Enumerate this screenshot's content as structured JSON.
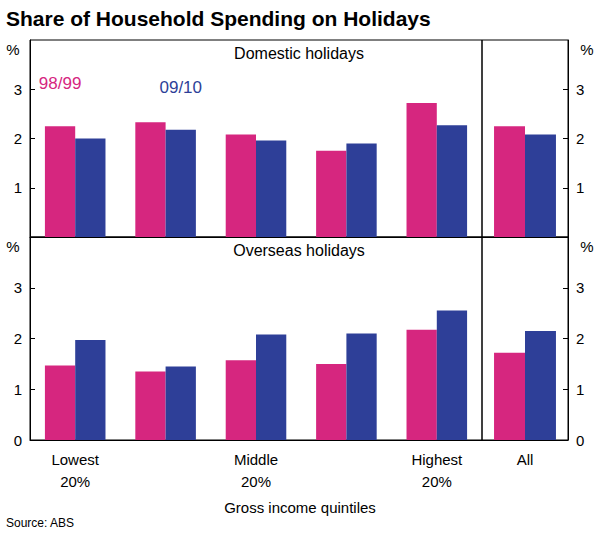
{
  "title": "Share of Household Spending on Holidays",
  "x_label": "Gross income quintiles",
  "source": "Source: ABS",
  "chart_data": [
    {
      "type": "bar",
      "title": "Domestic holidays",
      "y_label": "%",
      "categories": [
        "Lowest\n20%",
        null,
        "Middle\n20%",
        null,
        "Highest\n20%",
        "All"
      ],
      "series": [
        {
          "name": "98/99",
          "color": "#d6267f",
          "values": [
            2.25,
            2.33,
            2.08,
            1.75,
            2.72,
            2.25
          ]
        },
        {
          "name": "09/10",
          "color": "#2e3f98",
          "values": [
            2.0,
            2.18,
            1.96,
            1.9,
            2.27,
            2.08
          ]
        }
      ],
      "ylim": [
        0,
        4
      ],
      "yticks": [
        1,
        2,
        3
      ],
      "grid": false,
      "tick_labels": "y",
      "legend": "top left"
    },
    {
      "type": "bar",
      "title": "Overseas holidays",
      "y_label": "%",
      "categories": [
        "Lowest\n20%",
        null,
        "Middle\n20%",
        null,
        "Highest\n20%",
        "All"
      ],
      "series": [
        {
          "name": "98/99",
          "color": "#d6267f",
          "values": [
            1.47,
            1.35,
            1.57,
            1.5,
            2.17,
            1.72
          ]
        },
        {
          "name": "09/10",
          "color": "#2e3f98",
          "values": [
            1.97,
            1.45,
            2.08,
            2.1,
            2.55,
            2.15
          ]
        }
      ],
      "ylim": [
        0,
        4
      ],
      "yticks": [
        0,
        1,
        2,
        3
      ],
      "grid": false
    }
  ]
}
